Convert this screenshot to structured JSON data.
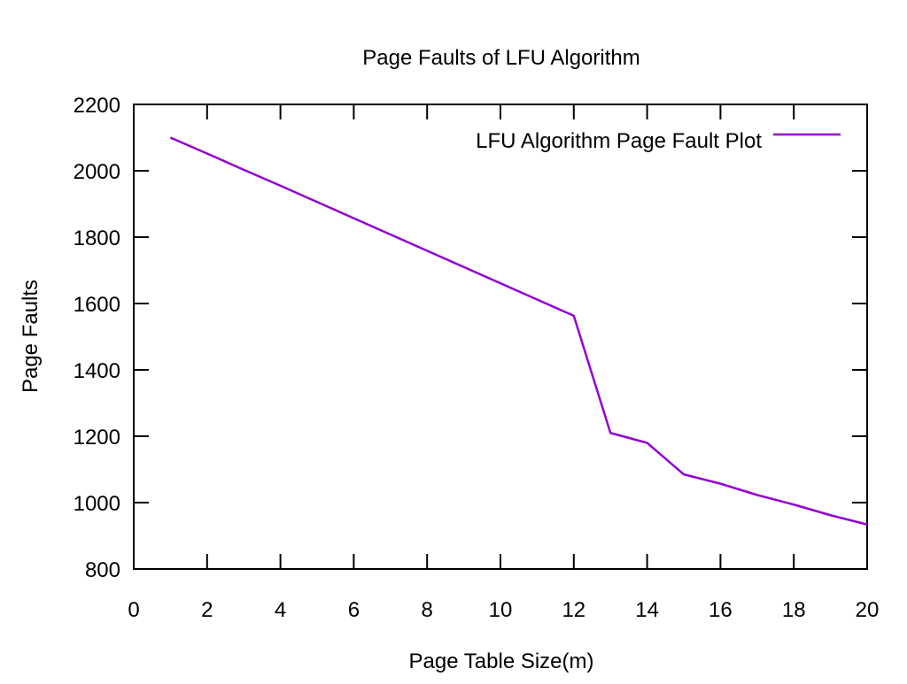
{
  "chart_data": {
    "type": "line",
    "title": "Page Faults of LFU Algorithm",
    "xlabel": "Page Table Size(m)",
    "ylabel": "Page Faults",
    "xlim": [
      0,
      20
    ],
    "ylim": [
      800,
      2200
    ],
    "xticks": [
      0,
      2,
      4,
      6,
      8,
      10,
      12,
      14,
      16,
      18,
      20
    ],
    "yticks": [
      800,
      1000,
      1200,
      1400,
      1600,
      1800,
      2000,
      2200
    ],
    "grid": false,
    "legend_position": "top-right",
    "series": [
      {
        "name": "LFU Algorithm Page Fault Plot",
        "color": "#9400d3",
        "x": [
          1,
          2,
          3,
          4,
          5,
          6,
          7,
          8,
          9,
          10,
          11,
          12,
          13,
          14,
          15,
          16,
          17,
          18,
          19,
          20
        ],
        "y": [
          2100,
          2052,
          2003,
          1955,
          1906,
          1857,
          1808,
          1759,
          1710,
          1661,
          1612,
          1563,
          1210,
          1180,
          1085,
          1057,
          1023,
          994,
          962,
          934
        ]
      }
    ]
  }
}
